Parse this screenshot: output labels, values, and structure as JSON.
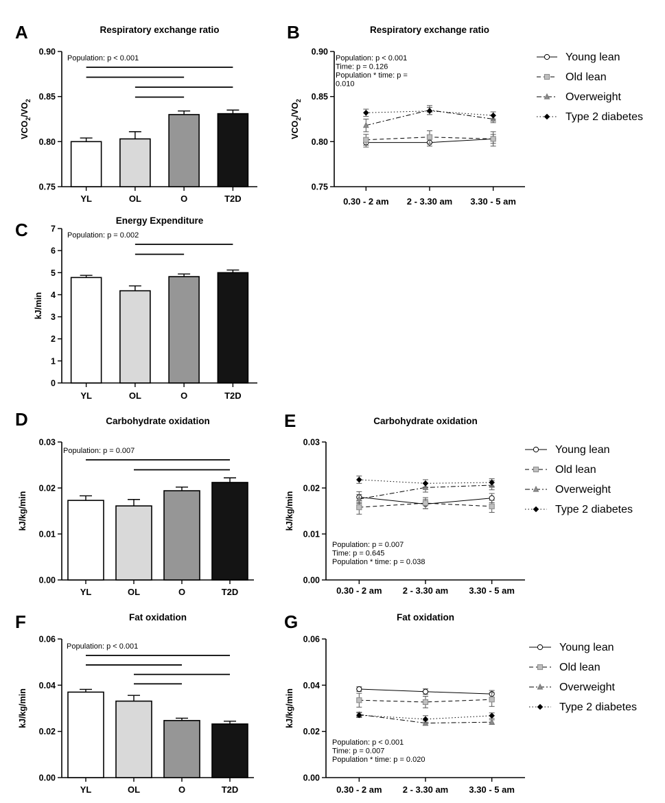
{
  "colors": {
    "YL": "#ffffff",
    "OL": "#d9d9d9",
    "O": "#969696",
    "T2D": "#141414",
    "axis": "#000000"
  },
  "series_styles": {
    "Young lean": {
      "dash": "",
      "marker": "circle-open",
      "fill": "#ffffff",
      "stroke": "#000000"
    },
    "Old lean": {
      "dash": "6 4",
      "marker": "square",
      "fill": "#bfbfbf",
      "stroke": "#888888"
    },
    "Overweight": {
      "dash": "7 3 2 3",
      "marker": "triangle",
      "fill": "#8c8c8c",
      "stroke": "#777777"
    },
    "Type 2 diabetes": {
      "dash": "1.5 3",
      "marker": "diamond",
      "fill": "#000000",
      "stroke": "#000000"
    }
  },
  "chart_data": [
    {
      "id": "A",
      "letter": "A",
      "type": "bar",
      "title": "Respiratory exchange ratio",
      "ylabel_main": "VCO",
      "ylabel_sub1": "2",
      "ylabel_mid": "/VO",
      "ylabel_sub2": "2",
      "ylim": [
        0.75,
        0.9
      ],
      "yticks": [
        "0.75",
        "0.80",
        "0.85",
        "0.90"
      ],
      "ytick_values": [
        0.75,
        0.8,
        0.85,
        0.9
      ],
      "categories": [
        "YL",
        "OL",
        "O",
        "T2D"
      ],
      "values": [
        0.8,
        0.803,
        0.83,
        0.831
      ],
      "errors": [
        0.004,
        0.008,
        0.004,
        0.004
      ],
      "stats": [
        "Population: p < 0.001"
      ],
      "significance": [
        [
          0,
          3
        ],
        [
          0,
          2
        ],
        [
          1,
          3
        ],
        [
          1,
          2
        ]
      ]
    },
    {
      "id": "B",
      "letter": "B",
      "type": "line",
      "title": "Respiratory exchange ratio",
      "ylabel_main": "VCO",
      "ylabel_sub1": "2",
      "ylabel_mid": "/VO",
      "ylabel_sub2": "2",
      "ylim": [
        0.75,
        0.9
      ],
      "yticks": [
        "0.75",
        "0.80",
        "0.85",
        "0.90"
      ],
      "ytick_values": [
        0.75,
        0.8,
        0.85,
        0.9
      ],
      "x": [
        "0.30 - 2 am",
        "2 - 3.30 am",
        "3.30 - 5 am"
      ],
      "series": [
        {
          "name": "Young lean",
          "values": [
            0.799,
            0.799,
            0.803
          ],
          "errors": [
            0.005,
            0.004,
            0.008
          ]
        },
        {
          "name": "Old lean",
          "values": [
            0.802,
            0.805,
            0.803
          ],
          "errors": [
            0.006,
            0.007,
            0.005
          ]
        },
        {
          "name": "Overweight",
          "values": [
            0.818,
            0.835,
            0.825
          ],
          "errors": [
            0.007,
            0.005,
            0.004
          ]
        },
        {
          "name": "Type 2 diabetes",
          "values": [
            0.832,
            0.834,
            0.829
          ],
          "errors": [
            0.004,
            0.004,
            0.004
          ]
        }
      ],
      "stats": [
        "Population: p < 0.001",
        "Time: p = 0.126",
        "Population * time: p =",
        "0.010"
      ]
    },
    {
      "id": "C",
      "letter": "C",
      "type": "bar",
      "title": "Energy Expenditure",
      "ylabel_main": "kJ/min",
      "ylim": [
        0,
        7
      ],
      "yticks": [
        "0",
        "1",
        "2",
        "3",
        "4",
        "5",
        "6",
        "7"
      ],
      "ytick_values": [
        0,
        1,
        2,
        3,
        4,
        5,
        6,
        7
      ],
      "categories": [
        "YL",
        "OL",
        "O",
        "T2D"
      ],
      "values": [
        4.78,
        4.18,
        4.82,
        5.0
      ],
      "errors": [
        0.1,
        0.22,
        0.12,
        0.12
      ],
      "stats": [
        "Population: p = 0.002"
      ],
      "significance": [
        [
          1,
          3
        ],
        [
          1,
          2
        ]
      ]
    },
    {
      "id": "D",
      "letter": "D",
      "type": "bar",
      "title": "Carbohydrate oxidation",
      "ylabel_main": "kJ/kg/min",
      "ylim": [
        0,
        0.03
      ],
      "yticks": [
        "0.00",
        "0.01",
        "0.02",
        "0.03"
      ],
      "ytick_values": [
        0,
        0.01,
        0.02,
        0.03
      ],
      "categories": [
        "YL",
        "OL",
        "O",
        "T2D"
      ],
      "values": [
        0.0173,
        0.0161,
        0.0194,
        0.0212
      ],
      "errors": [
        0.001,
        0.0014,
        0.0008,
        0.001
      ],
      "stats": [
        "Population: p = 0.007"
      ],
      "significance": [
        [
          0,
          3
        ],
        [
          1,
          3
        ]
      ]
    },
    {
      "id": "E",
      "letter": "E",
      "type": "line",
      "title": "Carbohydrate oxidation",
      "ylabel_main": "kJ/kg/min",
      "ylim": [
        0,
        0.03
      ],
      "yticks": [
        "0.00",
        "0.01",
        "0.02",
        "0.03"
      ],
      "ytick_values": [
        0,
        0.01,
        0.02,
        0.03
      ],
      "x": [
        "0.30 - 2 am",
        "2 - 3.30 am",
        "3.30 - 5 am"
      ],
      "series": [
        {
          "name": "Young lean",
          "values": [
            0.018,
            0.0165,
            0.0178
          ],
          "errors": [
            0.0012,
            0.001,
            0.001
          ]
        },
        {
          "name": "Old lean",
          "values": [
            0.0158,
            0.0167,
            0.016
          ],
          "errors": [
            0.0015,
            0.0012,
            0.0013
          ]
        },
        {
          "name": "Overweight",
          "values": [
            0.0176,
            0.0201,
            0.0206
          ],
          "errors": [
            0.001,
            0.001,
            0.001
          ]
        },
        {
          "name": "Type 2 diabetes",
          "values": [
            0.0218,
            0.021,
            0.0212
          ],
          "errors": [
            0.0008,
            0.0008,
            0.0008
          ]
        }
      ],
      "stats": [
        "Population: p = 0.007",
        "Time: p = 0.645",
        "Population * time: p = 0.038"
      ]
    },
    {
      "id": "F",
      "letter": "F",
      "type": "bar",
      "title": "Fat oxidation",
      "ylabel_main": "kJ/kg/min",
      "ylim": [
        0,
        0.06
      ],
      "yticks": [
        "0.00",
        "0.02",
        "0.04",
        "0.06"
      ],
      "ytick_values": [
        0,
        0.02,
        0.04,
        0.06
      ],
      "categories": [
        "YL",
        "OL",
        "O",
        "T2D"
      ],
      "values": [
        0.037,
        0.0331,
        0.0247,
        0.0232
      ],
      "errors": [
        0.0012,
        0.0025,
        0.001,
        0.0012
      ],
      "stats": [
        "Population: p < 0.001"
      ],
      "significance": [
        [
          0,
          3
        ],
        [
          0,
          2
        ],
        [
          1,
          3
        ],
        [
          1,
          2
        ]
      ]
    },
    {
      "id": "G",
      "letter": "G",
      "type": "line",
      "title": "Fat oxidation",
      "ylabel_main": "kJ/kg/min",
      "ylim": [
        0,
        0.06
      ],
      "yticks": [
        "0.00",
        "0.02",
        "0.04",
        "0.06"
      ],
      "ytick_values": [
        0,
        0.02,
        0.04,
        0.06
      ],
      "x": [
        "0.30 - 2 am",
        "2 - 3.30 am",
        "3.30 - 5 am"
      ],
      "series": [
        {
          "name": "Young lean",
          "values": [
            0.0383,
            0.0372,
            0.0362
          ],
          "errors": [
            0.001,
            0.0012,
            0.0015
          ]
        },
        {
          "name": "Old lean",
          "values": [
            0.0335,
            0.0327,
            0.0338
          ],
          "errors": [
            0.003,
            0.0025,
            0.003
          ]
        },
        {
          "name": "Overweight",
          "values": [
            0.0273,
            0.0236,
            0.024
          ],
          "errors": [
            0.001,
            0.001,
            0.001
          ]
        },
        {
          "name": "Type 2 diabetes",
          "values": [
            0.027,
            0.0253,
            0.0268
          ],
          "errors": [
            0.001,
            0.0015,
            0.0012
          ]
        }
      ],
      "stats": [
        "Population: p < 0.001",
        "Time: p = 0.007",
        "Population * time: p = 0.020"
      ]
    }
  ]
}
